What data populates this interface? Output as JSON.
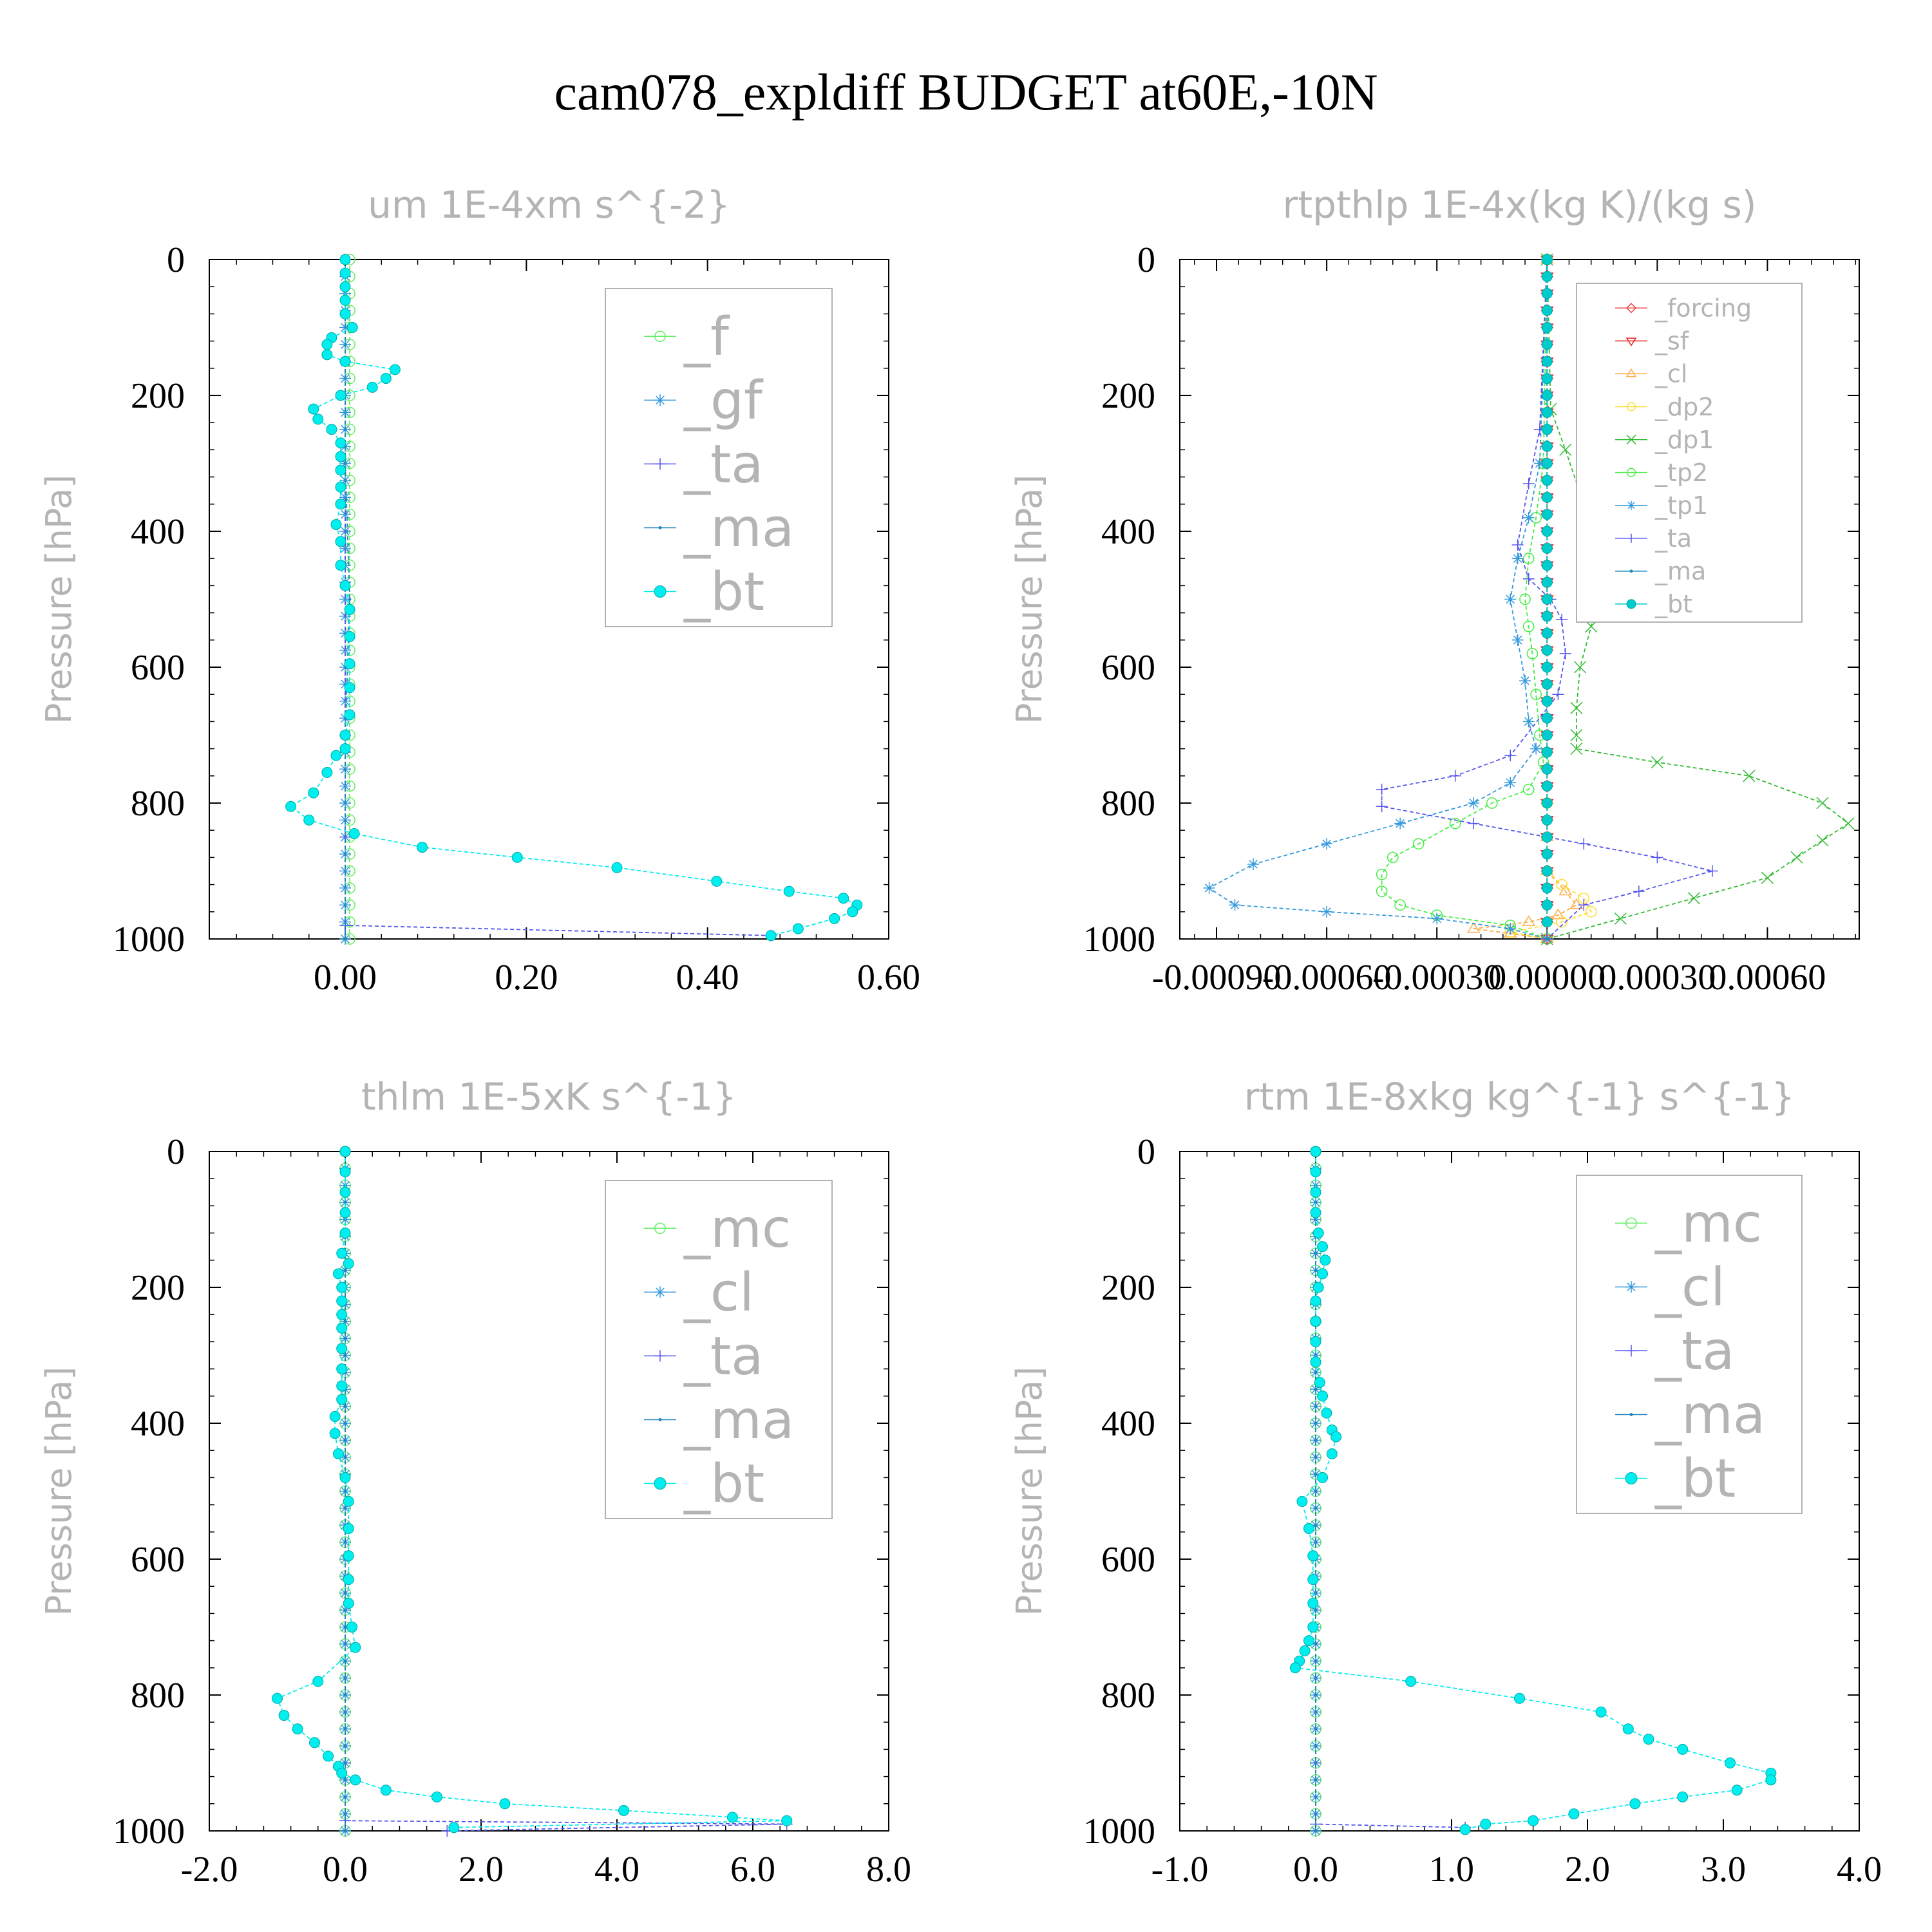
{
  "page_title": "cam078_expldiff  BUDGET at60E,-10N",
  "chart_data": [
    {
      "type": "line",
      "title": "um  1E-4xm s^{-2}",
      "ylabel": "Pressure [hPa]",
      "xlabel": "",
      "xlim": [
        -0.15,
        0.6
      ],
      "ylim": [
        1000,
        0
      ],
      "xticks": [
        0.0,
        0.2,
        0.4,
        0.6
      ],
      "xtick_labels": [
        "0.00",
        "0.20",
        "0.40",
        "0.60"
      ],
      "yticks": [
        0,
        200,
        400,
        600,
        800,
        1000
      ],
      "ytick_labels": [
        "0",
        "200",
        "400",
        "600",
        "800",
        "1000"
      ],
      "legend_position": "top-right",
      "series": [
        {
          "name": "_f",
          "color": "#66ee66",
          "marker": "circle-open",
          "x": [
            0.005,
            0.005
          ],
          "y": [
            0,
            1000
          ]
        },
        {
          "name": "_gf",
          "color": "#3399dd",
          "marker": "asterisk",
          "x": [
            0.0,
            0.0
          ],
          "y": [
            0,
            1000
          ]
        },
        {
          "name": "_ta",
          "color": "#5555ee",
          "marker": "plus",
          "x": [
            0.0,
            0.0,
            0.0,
            0.47
          ],
          "y": [
            0,
            850,
            980,
            995
          ]
        },
        {
          "name": "_ma",
          "color": "#2288bb",
          "marker": "dot",
          "x": [
            0.0,
            0.0,
            0.005,
            0.0,
            0.0
          ],
          "y": [
            0,
            300,
            500,
            700,
            1000
          ]
        },
        {
          "name": "_bt",
          "color": "#00eeee",
          "marker": "circle-filled",
          "x": [
            0.0,
            0.0,
            0.0,
            0.0,
            0.0,
            0.008,
            -0.015,
            -0.02,
            -0.02,
            0.0,
            0.055,
            0.045,
            0.03,
            -0.005,
            -0.035,
            -0.03,
            -0.015,
            -0.005,
            -0.005,
            -0.005,
            -0.005,
            -0.005,
            -0.01,
            -0.005,
            -0.005,
            0.0,
            0.005,
            0.005,
            0.005,
            0.005,
            0.005,
            0.0,
            0.0,
            -0.01,
            -0.02,
            -0.035,
            -0.06,
            -0.04,
            0.01,
            0.085,
            0.19,
            0.3,
            0.41,
            0.49,
            0.55,
            0.565,
            0.56,
            0.54,
            0.5,
            0.47
          ],
          "y": [
            0,
            20,
            40,
            60,
            80,
            100,
            115,
            125,
            140,
            150,
            162,
            175,
            188,
            200,
            220,
            235,
            250,
            270,
            290,
            310,
            335,
            360,
            390,
            415,
            450,
            480,
            515,
            555,
            595,
            630,
            670,
            700,
            720,
            730,
            755,
            785,
            805,
            825,
            845,
            865,
            880,
            895,
            915,
            930,
            940,
            950,
            960,
            970,
            985,
            995
          ]
        }
      ]
    },
    {
      "type": "line",
      "title": "rtpthlp  1E-4x(kg K)/(kg s)",
      "ylabel": "Pressure [hPa]",
      "xlabel": "",
      "xlim": [
        -0.001,
        0.00085
      ],
      "ylim": [
        1000,
        0
      ],
      "xticks": [
        -0.0009,
        -0.0006,
        -0.0003,
        0.0,
        0.0003,
        0.0006
      ],
      "xtick_labels": [
        "-0.00090",
        "-0.00060",
        "-0.00030",
        "0.00000",
        "0.00030",
        "0.00060"
      ],
      "yticks": [
        0,
        200,
        400,
        600,
        800,
        1000
      ],
      "ytick_labels": [
        "0",
        "200",
        "400",
        "600",
        "800",
        "1000"
      ],
      "legend_position": "top-right",
      "series": [
        {
          "name": "_forcing",
          "color": "#ee4444",
          "marker": "diamond-open",
          "x": [
            0.0,
            0.0
          ],
          "y": [
            0,
            1000
          ]
        },
        {
          "name": "_sf",
          "color": "#ee2222",
          "marker": "triangle-down",
          "x": [
            0.0,
            0.0
          ],
          "y": [
            0,
            1000
          ]
        },
        {
          "name": "_cl",
          "color": "#ffaa44",
          "marker": "triangle-up",
          "x": [
            0.0,
            0.0,
            0.0,
            5e-05,
            8e-05,
            3e-05,
            -5e-05,
            -0.0002,
            -0.0001,
            0.0
          ],
          "y": [
            0,
            850,
            900,
            930,
            950,
            965,
            975,
            985,
            992,
            1000
          ]
        },
        {
          "name": "_dp2",
          "color": "#ffdd33",
          "marker": "square-open",
          "x": [
            0.0,
            0.0,
            0.0,
            4e-05,
            0.0001,
            0.00012,
            4e-05,
            -0.0001,
            0.0
          ],
          "y": [
            0,
            800,
            900,
            920,
            940,
            960,
            975,
            990,
            1000
          ]
        },
        {
          "name": "_dp1",
          "color": "#33bb33",
          "marker": "x",
          "x": [
            0.0,
            1e-05,
            5e-05,
            0.0001,
            0.00014,
            0.00015,
            0.00012,
            9e-05,
            8e-05,
            8e-05,
            8e-05,
            0.0003,
            0.00055,
            0.00075,
            0.00082,
            0.00075,
            0.00068,
            0.0006,
            0.0004,
            0.0002,
            0.0
          ],
          "y": [
            0,
            220,
            280,
            360,
            430,
            480,
            540,
            600,
            660,
            700,
            720,
            740,
            760,
            800,
            830,
            855,
            880,
            910,
            940,
            970,
            1000
          ]
        },
        {
          "name": "_tp2",
          "color": "#44ee44",
          "marker": "circle-open",
          "x": [
            0.0,
            -1e-05,
            -3e-05,
            -5e-05,
            -6e-05,
            -5e-05,
            -4e-05,
            -3e-05,
            -2e-05,
            -1e-05,
            -5e-05,
            -0.00015,
            -0.00025,
            -0.00035,
            -0.00042,
            -0.00045,
            -0.00045,
            -0.0004,
            -0.0003,
            -0.0001,
            0.0
          ],
          "y": [
            0,
            300,
            380,
            440,
            500,
            540,
            580,
            640,
            700,
            740,
            780,
            800,
            830,
            860,
            880,
            905,
            930,
            950,
            965,
            980,
            1000
          ]
        },
        {
          "name": "_tp1",
          "color": "#3399dd",
          "marker": "asterisk",
          "x": [
            0.0,
            -2e-05,
            -5e-05,
            -8e-05,
            -0.0001,
            -8e-05,
            -6e-05,
            -5e-05,
            -3e-05,
            -0.0001,
            -0.0002,
            -0.0004,
            -0.0006,
            -0.0008,
            -0.00092,
            -0.00085,
            -0.0006,
            -0.0003,
            -0.0001,
            0.0
          ],
          "y": [
            0,
            300,
            380,
            440,
            500,
            560,
            620,
            680,
            720,
            770,
            800,
            830,
            860,
            890,
            925,
            950,
            960,
            970,
            985,
            1000
          ]
        },
        {
          "name": "_ta",
          "color": "#5555ee",
          "marker": "plus",
          "x": [
            0.0,
            -2e-05,
            -5e-05,
            -8e-05,
            -5e-05,
            1e-05,
            4e-05,
            5e-05,
            3e-05,
            -0.0001,
            -0.00025,
            -0.00045,
            -0.00045,
            -0.0002,
            0.0001,
            0.0003,
            0.00045,
            0.00025,
            0.0001,
            0.0
          ],
          "y": [
            0,
            250,
            330,
            420,
            470,
            500,
            530,
            580,
            640,
            730,
            760,
            780,
            805,
            830,
            860,
            880,
            900,
            930,
            950,
            1000
          ]
        },
        {
          "name": "_ma",
          "color": "#2288bb",
          "marker": "dot",
          "x": [
            0.0,
            0.0
          ],
          "y": [
            0,
            1000
          ]
        },
        {
          "name": "_bt",
          "color": "#00cccc",
          "marker": "circle-filled",
          "x": [
            0.0,
            0.0,
            0.0,
            0.0,
            0.0,
            0.0,
            0.0,
            0.0,
            0.0,
            0.0,
            0.0,
            0.0,
            0.0,
            0.0,
            0.0,
            0.0,
            0.0,
            0.0,
            0.0,
            0.0,
            0.0,
            0.0,
            0.0,
            0.0,
            0.0,
            0.0,
            0.0,
            0.0,
            0.0,
            0.0,
            0.0,
            0.0,
            0.0,
            0.0,
            0.0,
            0.0,
            0.0,
            0.0,
            0.0,
            0.0
          ],
          "y": [
            0,
            25,
            50,
            75,
            100,
            125,
            150,
            175,
            200,
            225,
            250,
            275,
            300,
            325,
            350,
            375,
            400,
            425,
            450,
            475,
            500,
            525,
            550,
            575,
            600,
            625,
            650,
            675,
            700,
            725,
            750,
            775,
            800,
            825,
            850,
            875,
            900,
            925,
            950,
            975
          ]
        }
      ]
    },
    {
      "type": "line",
      "title": "thlm  1E-5xK s^{-1}",
      "ylabel": "Pressure [hPa]",
      "xlabel": "",
      "xlim": [
        -2.0,
        8.0
      ],
      "ylim": [
        1000,
        0
      ],
      "xticks": [
        -2.0,
        0.0,
        2.0,
        4.0,
        6.0,
        8.0
      ],
      "xtick_labels": [
        "-2.0",
        "0.0",
        "2.0",
        "4.0",
        "6.0",
        "8.0"
      ],
      "yticks": [
        0,
        200,
        400,
        600,
        800,
        1000
      ],
      "ytick_labels": [
        "0",
        "200",
        "400",
        "600",
        "800",
        "1000"
      ],
      "legend_position": "top-right",
      "series": [
        {
          "name": "_mc",
          "color": "#66ee66",
          "marker": "circle-open",
          "x": [
            0.0,
            0.0
          ],
          "y": [
            0,
            1000
          ]
        },
        {
          "name": "_cl",
          "color": "#3399dd",
          "marker": "asterisk",
          "x": [
            0.0,
            0.0
          ],
          "y": [
            0,
            1000
          ]
        },
        {
          "name": "_ta",
          "color": "#5555ee",
          "marker": "plus",
          "x": [
            0.0,
            0.0,
            0.0,
            6.5,
            1.5
          ],
          "y": [
            0,
            900,
            985,
            990,
            1000
          ]
        },
        {
          "name": "_ma",
          "color": "#2288bb",
          "marker": "dot",
          "x": [
            0.0,
            0.0
          ],
          "y": [
            0,
            1000
          ]
        },
        {
          "name": "_bt",
          "color": "#00eeee",
          "marker": "circle-filled",
          "x": [
            0.0,
            0.0,
            0.0,
            0.0,
            0.0,
            -0.05,
            0.05,
            -0.1,
            -0.05,
            -0.05,
            -0.05,
            -0.05,
            -0.05,
            -0.05,
            -0.05,
            -0.05,
            -0.15,
            -0.15,
            -0.1,
            0.0,
            0.05,
            0.05,
            0.05,
            0.05,
            0.05,
            0.1,
            0.15,
            -0.4,
            -1.0,
            -0.9,
            -0.7,
            -0.45,
            -0.25,
            -0.1,
            -0.05,
            0.15,
            0.6,
            1.35,
            2.35,
            4.1,
            5.7,
            6.5,
            1.6
          ],
          "y": [
            0,
            30,
            60,
            90,
            120,
            150,
            165,
            180,
            200,
            220,
            240,
            260,
            290,
            320,
            345,
            365,
            390,
            415,
            445,
            480,
            515,
            555,
            595,
            630,
            665,
            700,
            730,
            780,
            805,
            830,
            850,
            870,
            890,
            905,
            915,
            925,
            940,
            950,
            960,
            970,
            980,
            985,
            995
          ]
        }
      ]
    },
    {
      "type": "line",
      "title": "rtm  1E-8xkg kg^{-1} s^{-1}",
      "ylabel": "Pressure [hPa]",
      "xlabel": "",
      "xlim": [
        -1.0,
        4.0
      ],
      "ylim": [
        1000,
        0
      ],
      "xticks": [
        -1.0,
        0.0,
        1.0,
        2.0,
        3.0,
        4.0
      ],
      "xtick_labels": [
        "-1.0",
        "0.0",
        "1.0",
        "2.0",
        "3.0",
        "4.0"
      ],
      "yticks": [
        0,
        200,
        400,
        600,
        800,
        1000
      ],
      "ytick_labels": [
        "0",
        "200",
        "400",
        "600",
        "800",
        "1000"
      ],
      "legend_position": "top-right",
      "series": [
        {
          "name": "_mc",
          "color": "#66ee66",
          "marker": "circle-open",
          "x": [
            0.0,
            0.0
          ],
          "y": [
            0,
            1000
          ]
        },
        {
          "name": "_cl",
          "color": "#3399dd",
          "marker": "asterisk",
          "x": [
            0.0,
            0.0
          ],
          "y": [
            0,
            1000
          ]
        },
        {
          "name": "_ta",
          "color": "#5555ee",
          "marker": "plus",
          "x": [
            0.0,
            0.0,
            0.0,
            1.1
          ],
          "y": [
            0,
            900,
            990,
            995
          ]
        },
        {
          "name": "_ma",
          "color": "#2288bb",
          "marker": "dot",
          "x": [
            0.0,
            0.0
          ],
          "y": [
            0,
            1000
          ]
        },
        {
          "name": "_bt",
          "color": "#00eeee",
          "marker": "circle-filled",
          "x": [
            0.0,
            0.0,
            0.0,
            0.0,
            0.02,
            0.05,
            0.07,
            0.05,
            0.02,
            0.0,
            0.0,
            0.0,
            0.0,
            0.03,
            0.05,
            0.08,
            0.12,
            0.15,
            0.12,
            0.05,
            -0.1,
            -0.05,
            -0.02,
            -0.02,
            -0.02,
            -0.02,
            -0.05,
            -0.08,
            -0.12,
            -0.15,
            0.7,
            1.5,
            2.1,
            2.3,
            2.45,
            2.7,
            3.05,
            3.35,
            3.35,
            3.1,
            2.7,
            2.35,
            1.9,
            1.6,
            1.25,
            1.1
          ],
          "y": [
            0,
            30,
            60,
            90,
            120,
            140,
            160,
            180,
            200,
            220,
            250,
            280,
            310,
            340,
            360,
            385,
            410,
            420,
            445,
            480,
            515,
            555,
            595,
            630,
            665,
            700,
            720,
            735,
            750,
            760,
            780,
            805,
            825,
            850,
            865,
            880,
            900,
            915,
            925,
            940,
            950,
            960,
            975,
            985,
            990,
            998
          ]
        }
      ]
    }
  ]
}
